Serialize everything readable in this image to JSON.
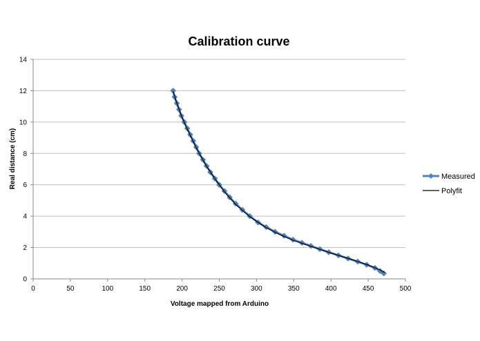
{
  "chart_data": {
    "type": "line",
    "title": "Calibration curve",
    "xlabel": "Voltage mapped from Arduino",
    "ylabel": "Real distance (cm)",
    "xlim": [
      0,
      500
    ],
    "ylim": [
      0,
      14
    ],
    "x_ticks": [
      0,
      50,
      100,
      150,
      200,
      250,
      300,
      350,
      400,
      450,
      500
    ],
    "y_ticks": [
      0,
      2,
      4,
      6,
      8,
      10,
      12,
      14
    ],
    "grid": "horizontal",
    "legend_position": "right",
    "series": [
      {
        "name": "Measured",
        "color": "#4f81bd",
        "marker": "diamond",
        "points": [
          [
            188,
            12.0
          ],
          [
            190,
            11.6
          ],
          [
            193,
            11.2
          ],
          [
            196,
            10.8
          ],
          [
            199,
            10.4
          ],
          [
            203,
            10.0
          ],
          [
            207,
            9.6
          ],
          [
            211,
            9.2
          ],
          [
            215,
            8.8
          ],
          [
            219,
            8.4
          ],
          [
            223,
            8.0
          ],
          [
            228,
            7.6
          ],
          [
            233,
            7.2
          ],
          [
            238,
            6.8
          ],
          [
            244,
            6.4
          ],
          [
            250,
            6.0
          ],
          [
            257,
            5.6
          ],
          [
            264,
            5.2
          ],
          [
            272,
            4.8
          ],
          [
            281,
            4.4
          ],
          [
            291,
            4.0
          ],
          [
            302,
            3.6
          ],
          [
            313,
            3.3
          ],
          [
            325,
            3.0
          ],
          [
            337,
            2.75
          ],
          [
            349,
            2.5
          ],
          [
            361,
            2.3
          ],
          [
            373,
            2.1
          ],
          [
            385,
            1.9
          ],
          [
            397,
            1.7
          ],
          [
            410,
            1.5
          ],
          [
            423,
            1.3
          ],
          [
            436,
            1.1
          ],
          [
            448,
            0.9
          ],
          [
            459,
            0.7
          ],
          [
            466,
            0.5
          ],
          [
            471,
            0.35
          ]
        ]
      },
      {
        "name": "Polyfit",
        "color": "#000000",
        "marker": "none",
        "points": [
          [
            188,
            11.95
          ],
          [
            192,
            11.35
          ],
          [
            198,
            10.55
          ],
          [
            205,
            9.75
          ],
          [
            213,
            8.95
          ],
          [
            222,
            8.1
          ],
          [
            232,
            7.25
          ],
          [
            244,
            6.4
          ],
          [
            257,
            5.55
          ],
          [
            272,
            4.75
          ],
          [
            290,
            4.0
          ],
          [
            310,
            3.35
          ],
          [
            330,
            2.85
          ],
          [
            350,
            2.45
          ],
          [
            370,
            2.12
          ],
          [
            390,
            1.8
          ],
          [
            410,
            1.5
          ],
          [
            430,
            1.2
          ],
          [
            450,
            0.88
          ],
          [
            465,
            0.6
          ],
          [
            472,
            0.4
          ]
        ]
      }
    ]
  }
}
